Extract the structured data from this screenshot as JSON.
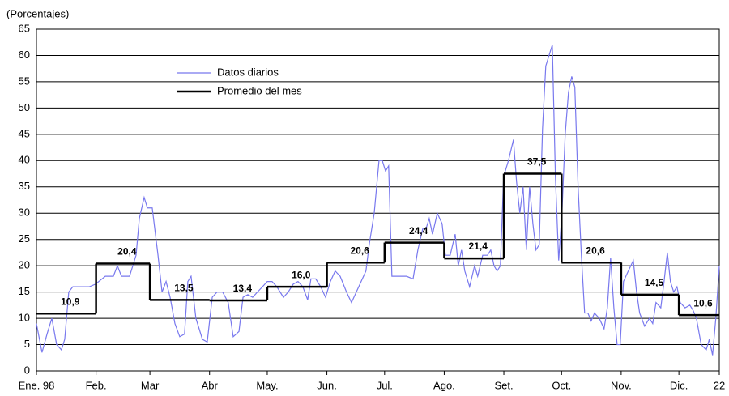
{
  "chart_data": {
    "type": "line",
    "y_label": "(Porcentajes)",
    "xlim": [
      0,
      355
    ],
    "xticks": [
      {
        "value": 0,
        "label": "Ene. 98"
      },
      {
        "value": 31,
        "label": "Feb."
      },
      {
        "value": 59,
        "label": "Mar"
      },
      {
        "value": 90,
        "label": "Abr"
      },
      {
        "value": 120,
        "label": "May."
      },
      {
        "value": 151,
        "label": "Jun."
      },
      {
        "value": 181,
        "label": "Jul."
      },
      {
        "value": 212,
        "label": "Ago."
      },
      {
        "value": 243,
        "label": "Set."
      },
      {
        "value": 273,
        "label": "Oct."
      },
      {
        "value": 304,
        "label": "Nov."
      },
      {
        "value": 334,
        "label": "Dic."
      },
      {
        "value": 355,
        "label": "22"
      }
    ],
    "ylim": [
      0,
      65
    ],
    "yticks": [
      0,
      5,
      10,
      15,
      20,
      25,
      30,
      35,
      40,
      45,
      50,
      55,
      60,
      65
    ],
    "grid": true,
    "legend": "upper left",
    "series": [
      {
        "name": "Datos diarios",
        "color": "#7878ee",
        "x": [
          0,
          2.9,
          5.5,
          8,
          10.5,
          13,
          14.7,
          16.8,
          18.9,
          27.4,
          30.7,
          35.8,
          40,
          42.1,
          44.2,
          48.4,
          51.8,
          53.5,
          56,
          57.7,
          60.2,
          63.2,
          65.3,
          67.4,
          69.5,
          72,
          74.5,
          77,
          78.7,
          80.4,
          82.9,
          86.3,
          88.8,
          91.4,
          93.9,
          96.8,
          99.7,
          102.3,
          105.3,
          107.4,
          109.9,
          112.4,
          114.9,
          117.5,
          120,
          122.5,
          125,
          128.4,
          130.9,
          133.5,
          136,
          138.5,
          141,
          142.7,
          145.2,
          147.8,
          150.3,
          152.8,
          155.3,
          157.9,
          161.2,
          163.8,
          166.3,
          168.8,
          171.3,
          173,
          175.6,
          178.1,
          179.8,
          181.5,
          183.1,
          184.8,
          187.3,
          189.9,
          192.4,
          195.8,
          198.3,
          200.8,
          202.5,
          204.2,
          205.9,
          208.4,
          210.9,
          212.6,
          215.1,
          217.7,
          219.3,
          221,
          222.7,
          225.2,
          227.8,
          229.4,
          232,
          234.5,
          236.2,
          237.9,
          239.5,
          241.2,
          242.9,
          245.4,
          248,
          249.6,
          251.3,
          253,
          254.7,
          256.4,
          258.1,
          259.7,
          261.4,
          263.1,
          264.8,
          266.5,
          268.2,
          269.8,
          271.5,
          273.2,
          274.9,
          276.6,
          278.3,
          279.9,
          281.6,
          283.3,
          285,
          286.7,
          288.4,
          290.1,
          292.6,
          295.1,
          296.8,
          298.5,
          300.2,
          301.9,
          303.5,
          305.2,
          307.7,
          310.3,
          312,
          313.6,
          316.2,
          318.7,
          320.4,
          322.1,
          324.6,
          326.3,
          328,
          329.6,
          331.3,
          333,
          334.7,
          337.2,
          339.7,
          341.4,
          343.1,
          345.6,
          348.2,
          349.8,
          351.5,
          353.2,
          355
        ],
        "values": [
          9,
          3.5,
          7,
          10,
          5,
          4,
          6,
          15,
          16,
          16,
          16.5,
          18,
          18,
          20,
          18,
          18,
          22,
          29,
          33,
          31,
          31,
          22,
          15,
          17,
          14,
          9,
          6.5,
          7,
          17,
          18,
          10,
          6,
          5.5,
          14,
          15,
          15,
          13,
          6.5,
          7.5,
          14,
          14.5,
          14,
          15,
          16,
          17,
          17,
          16,
          14,
          15,
          16.5,
          17,
          16,
          13.5,
          17.5,
          17.5,
          16,
          14,
          17,
          19,
          18,
          15,
          13,
          15,
          17,
          19,
          24,
          30,
          40,
          40,
          38,
          39,
          18,
          18,
          18,
          18,
          17.5,
          23,
          27,
          27,
          29,
          26,
          30,
          28,
          22,
          22,
          26,
          20,
          23,
          19,
          16,
          20,
          18,
          22,
          22,
          23,
          20,
          19,
          20,
          37,
          40,
          44,
          36,
          30,
          35,
          23,
          35,
          28,
          23,
          24,
          46,
          58,
          60,
          62,
          37,
          21,
          30,
          45,
          53,
          56,
          54,
          35,
          22,
          11,
          11,
          9.5,
          11,
          10,
          8,
          12,
          21.5,
          12,
          5,
          5,
          17,
          19,
          21,
          15,
          11,
          8.5,
          10,
          9,
          13,
          12,
          17,
          22.5,
          17,
          15,
          16,
          13,
          12,
          12.5,
          11.5,
          10,
          5,
          4,
          6,
          3,
          10,
          20
        ]
      },
      {
        "name": "Promedio del mes",
        "color": "#000000",
        "step": true,
        "x": [
          0,
          31,
          59,
          90,
          120,
          151,
          181,
          212,
          243,
          273,
          304,
          334
        ],
        "values": [
          10.9,
          20.4,
          13.5,
          13.4,
          16.0,
          20.6,
          24.4,
          21.4,
          37.5,
          20.6,
          14.5,
          10.6
        ],
        "value_labels": [
          "10,9",
          "20,4",
          "13,5",
          "13,4",
          "16,0",
          "20,6",
          "24,4",
          "21,4",
          "37,5",
          "20,6",
          "14,5",
          "10,6"
        ]
      }
    ]
  }
}
